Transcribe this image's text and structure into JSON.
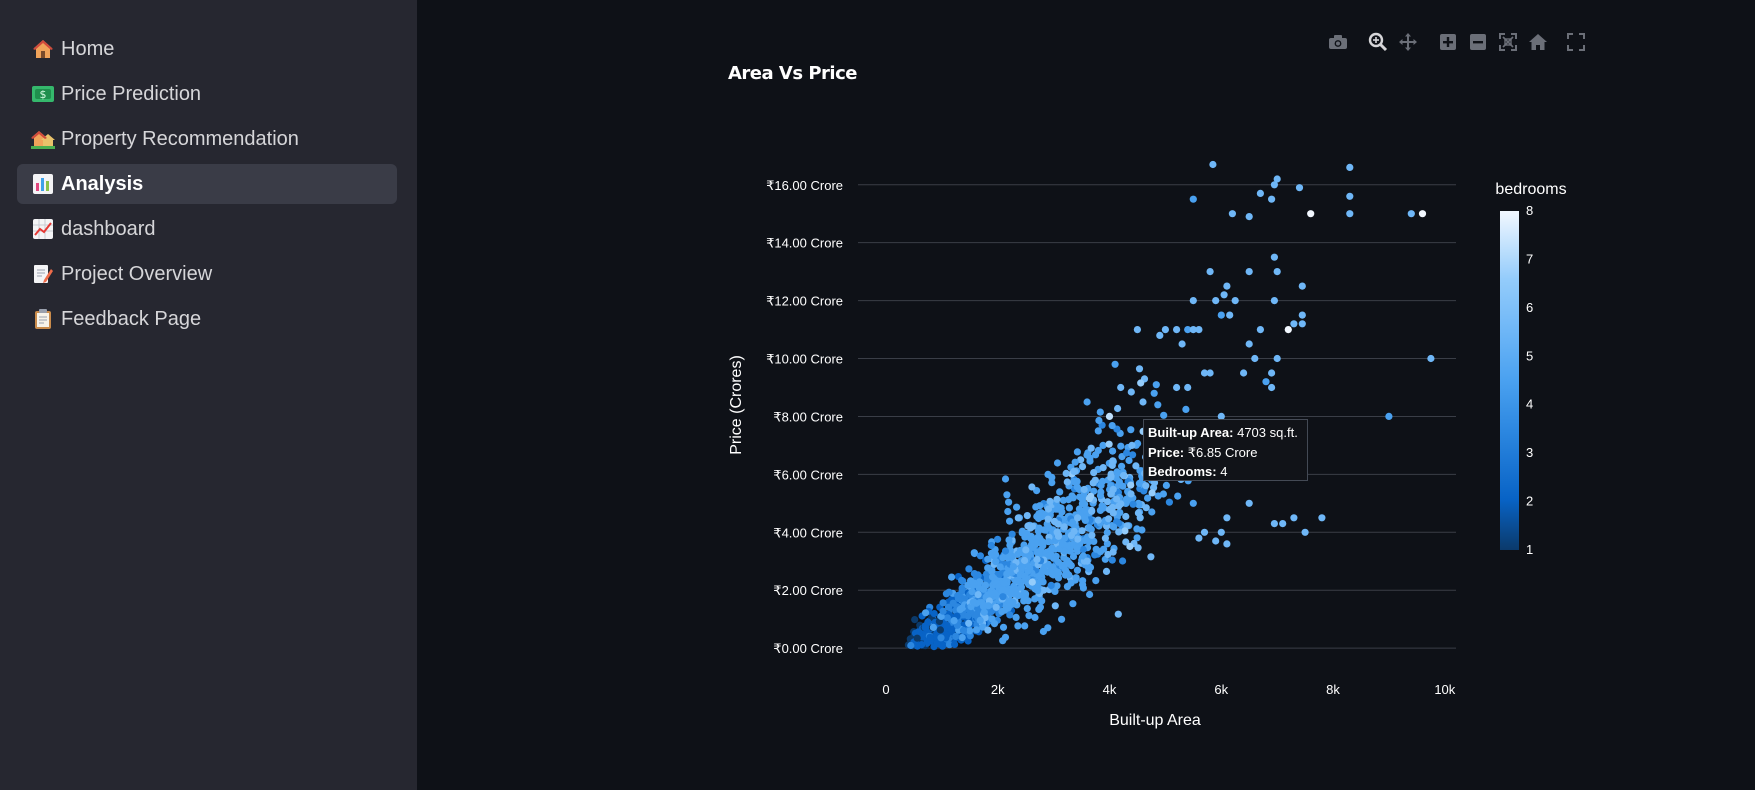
{
  "sidebar": {
    "items": [
      {
        "label": "Home",
        "icon": "house-icon",
        "active": false
      },
      {
        "label": "Price Prediction",
        "icon": "money-icon",
        "active": false
      },
      {
        "label": "Property Recommendation",
        "icon": "houses-icon",
        "active": false
      },
      {
        "label": "Analysis",
        "icon": "bar-chart-icon",
        "active": true
      },
      {
        "label": "dashboard",
        "icon": "trend-chart-icon",
        "active": false
      },
      {
        "label": "Project Overview",
        "icon": "memo-icon",
        "active": false
      },
      {
        "label": "Feedback Page",
        "icon": "clipboard-icon",
        "active": false
      }
    ]
  },
  "toolbar": {
    "buttons": [
      "camera-icon",
      "zoom-icon",
      "pan-icon",
      "zoom-in-icon",
      "zoom-out-icon",
      "autoscale-icon",
      "reset-axes-icon",
      "fullscreen-icon"
    ]
  },
  "chart_data": {
    "type": "scatter",
    "title": "Area Vs Price",
    "xlabel": "Built-up Area",
    "ylabel": "Price (Crores)",
    "xlim": [
      -500,
      10200
    ],
    "ylim": [
      -1.1,
      17.2
    ],
    "xticks": [
      0,
      2000,
      4000,
      6000,
      8000,
      10000
    ],
    "xtick_labels": [
      "0",
      "2k",
      "4k",
      "6k",
      "8k",
      "10k"
    ],
    "yticks": [
      0,
      2,
      4,
      6,
      8,
      10,
      12,
      14,
      16
    ],
    "ytick_labels": [
      "₹0.00 Crore",
      "₹2.00 Crore",
      "₹4.00 Crore",
      "₹6.00 Crore",
      "₹8.00 Crore",
      "₹10.00 Crore",
      "₹12.00 Crore",
      "₹14.00 Crore",
      "₹16.00 Crore"
    ],
    "grid": true,
    "colorbar": {
      "title": "bedrooms",
      "min": 1,
      "max": 8,
      "ticks": [
        "1",
        "2",
        "3",
        "4",
        "5",
        "6",
        "7",
        "8"
      ],
      "colors": [
        "#0b3a6b",
        "#0863c6",
        "#2c87e0",
        "#4aa1f0",
        "#6fb7f7",
        "#94ccfb",
        "#c0e1fd",
        "#f2f8ff"
      ]
    },
    "points": [
      {
        "x": 5850,
        "y": 16.7,
        "b": 5
      },
      {
        "x": 8300,
        "y": 16.6,
        "b": 5
      },
      {
        "x": 7000,
        "y": 16.2,
        "b": 5
      },
      {
        "x": 6950,
        "y": 16.0,
        "b": 5
      },
      {
        "x": 7400,
        "y": 15.9,
        "b": 5
      },
      {
        "x": 6700,
        "y": 15.7,
        "b": 5
      },
      {
        "x": 8300,
        "y": 15.6,
        "b": 5
      },
      {
        "x": 5500,
        "y": 15.5,
        "b": 4
      },
      {
        "x": 6900,
        "y": 15.5,
        "b": 5
      },
      {
        "x": 6200,
        "y": 15.0,
        "b": 5
      },
      {
        "x": 6500,
        "y": 14.9,
        "b": 5
      },
      {
        "x": 7600,
        "y": 15.0,
        "b": 8
      },
      {
        "x": 8300,
        "y": 15.0,
        "b": 5
      },
      {
        "x": 9400,
        "y": 15.0,
        "b": 5
      },
      {
        "x": 9600,
        "y": 15.0,
        "b": 8
      },
      {
        "x": 6950,
        "y": 13.5,
        "b": 5
      },
      {
        "x": 7000,
        "y": 13.0,
        "b": 5
      },
      {
        "x": 5800,
        "y": 13.0,
        "b": 5
      },
      {
        "x": 6500,
        "y": 13.0,
        "b": 5
      },
      {
        "x": 6100,
        "y": 12.5,
        "b": 5
      },
      {
        "x": 7450,
        "y": 12.5,
        "b": 5
      },
      {
        "x": 5500,
        "y": 12.0,
        "b": 5
      },
      {
        "x": 5900,
        "y": 12.0,
        "b": 5
      },
      {
        "x": 6050,
        "y": 12.2,
        "b": 5
      },
      {
        "x": 6250,
        "y": 12.0,
        "b": 5
      },
      {
        "x": 6950,
        "y": 12.0,
        "b": 5
      },
      {
        "x": 6000,
        "y": 11.5,
        "b": 4
      },
      {
        "x": 6150,
        "y": 11.5,
        "b": 5
      },
      {
        "x": 7450,
        "y": 11.5,
        "b": 5
      },
      {
        "x": 7450,
        "y": 11.2,
        "b": 5
      },
      {
        "x": 7300,
        "y": 11.2,
        "b": 5
      },
      {
        "x": 7200,
        "y": 11.0,
        "b": 8
      },
      {
        "x": 6700,
        "y": 11.0,
        "b": 5
      },
      {
        "x": 4500,
        "y": 11.0,
        "b": 5
      },
      {
        "x": 5000,
        "y": 11.0,
        "b": 5
      },
      {
        "x": 5200,
        "y": 11.0,
        "b": 5
      },
      {
        "x": 5400,
        "y": 11.0,
        "b": 4
      },
      {
        "x": 5500,
        "y": 11.0,
        "b": 5
      },
      {
        "x": 5600,
        "y": 11.0,
        "b": 5
      },
      {
        "x": 4900,
        "y": 10.8,
        "b": 5
      },
      {
        "x": 5300,
        "y": 10.5,
        "b": 5
      },
      {
        "x": 6500,
        "y": 10.5,
        "b": 5
      },
      {
        "x": 6600,
        "y": 10.0,
        "b": 5
      },
      {
        "x": 7000,
        "y": 10.0,
        "b": 5
      },
      {
        "x": 9750,
        "y": 10.0,
        "b": 5
      },
      {
        "x": 4100,
        "y": 9.8,
        "b": 4
      },
      {
        "x": 6400,
        "y": 9.5,
        "b": 5
      },
      {
        "x": 6900,
        "y": 9.5,
        "b": 5
      },
      {
        "x": 5700,
        "y": 9.5,
        "b": 5
      },
      {
        "x": 5800,
        "y": 9.5,
        "b": 5
      },
      {
        "x": 6900,
        "y": 9.0,
        "b": 5
      },
      {
        "x": 4200,
        "y": 9.0,
        "b": 5
      },
      {
        "x": 5400,
        "y": 9.0,
        "b": 5
      },
      {
        "x": 5200,
        "y": 9.0,
        "b": 5
      },
      {
        "x": 6800,
        "y": 9.2,
        "b": 4
      },
      {
        "x": 4600,
        "y": 8.5,
        "b": 5
      },
      {
        "x": 4800,
        "y": 8.8,
        "b": 4
      },
      {
        "x": 9000,
        "y": 8.0,
        "b": 4
      },
      {
        "x": 6000,
        "y": 8.0,
        "b": 5
      },
      {
        "x": 4000,
        "y": 8.0,
        "b": 7
      },
      {
        "x": 4703,
        "y": 6.85,
        "b": 4
      },
      {
        "x": 7300,
        "y": 4.5,
        "b": 5
      },
      {
        "x": 7800,
        "y": 4.5,
        "b": 5
      },
      {
        "x": 6950,
        "y": 4.3,
        "b": 5
      },
      {
        "x": 7100,
        "y": 4.3,
        "b": 5
      },
      {
        "x": 7500,
        "y": 4.0,
        "b": 5
      },
      {
        "x": 6500,
        "y": 5.0,
        "b": 5
      },
      {
        "x": 6100,
        "y": 4.5,
        "b": 5
      },
      {
        "x": 6000,
        "y": 4.0,
        "b": 5
      },
      {
        "x": 5700,
        "y": 4.0,
        "b": 5
      },
      {
        "x": 5600,
        "y": 3.8,
        "b": 5
      },
      {
        "x": 5900,
        "y": 3.7,
        "b": 5
      },
      {
        "x": 6100,
        "y": 3.6,
        "b": 5
      },
      {
        "x": 5500,
        "y": 5.0,
        "b": 4
      },
      {
        "x": 3600,
        "y": 8.5,
        "b": 4
      },
      {
        "x": 2900,
        "y": 6.0,
        "b": 4
      },
      {
        "x": 3800,
        "y": 7.5,
        "b": 4
      },
      {
        "x": 4400,
        "y": 7.0,
        "b": 5
      }
    ],
    "clusters": [
      {
        "cx": 700,
        "cy": 0.3,
        "sx": 160,
        "sy": 0.15,
        "n": 80,
        "b": 1
      },
      {
        "cx": 1000,
        "cy": 0.6,
        "sx": 230,
        "sy": 0.25,
        "n": 110,
        "b": 2
      },
      {
        "cx": 1300,
        "cy": 1.0,
        "sx": 280,
        "sy": 0.35,
        "n": 140,
        "b": 2
      },
      {
        "cx": 1700,
        "cy": 1.7,
        "sx": 340,
        "sy": 0.5,
        "n": 200,
        "b": 3
      },
      {
        "cx": 2300,
        "cy": 2.4,
        "sx": 430,
        "sy": 0.7,
        "n": 260,
        "b": 4
      },
      {
        "cx": 2800,
        "cy": 3.3,
        "sx": 520,
        "sy": 0.9,
        "n": 200,
        "b": 4
      },
      {
        "cx": 3500,
        "cy": 4.4,
        "sx": 580,
        "sy": 1.1,
        "n": 160,
        "b": 4
      },
      {
        "cx": 4300,
        "cy": 6.0,
        "sx": 520,
        "sy": 1.2,
        "n": 110,
        "b": 4
      },
      {
        "cx": 3900,
        "cy": 4.9,
        "sx": 650,
        "sy": 1.5,
        "n": 90,
        "b": 5
      }
    ]
  },
  "tooltip": {
    "area_label": "Built-up Area:",
    "area_value": "4703 sq.ft.",
    "price_label": "Price:",
    "price_value": "₹6.85 Crore",
    "bedrooms_label": "Bedrooms:",
    "bedrooms_value": "4"
  }
}
